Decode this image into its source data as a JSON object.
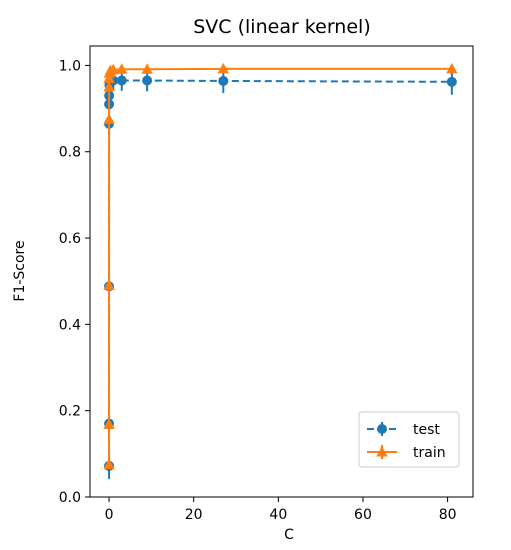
{
  "chart_data": {
    "type": "line",
    "title": "SVC (linear kernel)",
    "xlabel": "C",
    "ylabel": "F1-Score",
    "xlim": [
      -4.5,
      86
    ],
    "ylim": [
      0.0,
      1.045
    ],
    "xticks": [
      0,
      20,
      40,
      60,
      80
    ],
    "xtick_labels": [
      "0",
      "20",
      "40",
      "60",
      "80"
    ],
    "yticks": [
      0.0,
      0.2,
      0.4,
      0.6,
      0.8,
      1.0
    ],
    "ytick_labels": [
      "0.0",
      "0.2",
      "0.4",
      "0.6",
      "0.8",
      "1.0"
    ],
    "grid": false,
    "legend_position": "lower-right",
    "x": [
      0.0001,
      0.0003,
      0.001,
      0.003,
      0.01,
      0.03,
      0.1,
      0.3,
      1,
      3,
      9,
      27,
      81
    ],
    "series": [
      {
        "name": "test",
        "color": "#1f77b4",
        "linestyle": "dashed",
        "marker": "circle",
        "values": [
          0.072,
          0.17,
          0.488,
          0.865,
          0.91,
          0.93,
          0.955,
          0.962,
          0.965,
          0.965,
          0.965,
          0.964,
          0.962
        ],
        "errors": [
          0.03,
          0.03,
          0.025,
          0.02,
          0.02,
          0.02,
          0.02,
          0.02,
          0.022,
          0.024,
          0.025,
          0.028,
          0.03
        ]
      },
      {
        "name": "train",
        "color": "#ff7f0e",
        "linestyle": "solid",
        "marker": "triangle",
        "values": [
          0.075,
          0.168,
          0.49,
          0.875,
          0.95,
          0.97,
          0.982,
          0.988,
          0.99,
          0.991,
          0.991,
          0.992,
          0.992
        ],
        "errors": [
          0.003,
          0.003,
          0.003,
          0.003,
          0.003,
          0.003,
          0.003,
          0.003,
          0.003,
          0.003,
          0.003,
          0.003,
          0.003
        ]
      }
    ]
  }
}
